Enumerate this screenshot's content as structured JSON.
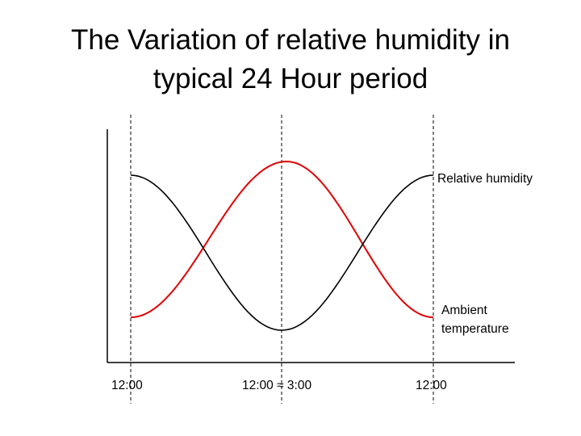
{
  "title": {
    "line1": "The Variation of relative humidity in",
    "line2": "typical 24 Hour period"
  },
  "chart_data": {
    "type": "line",
    "x_tick_labels": [
      "12:00",
      "12:00 ≈ 3:00",
      "12:00"
    ],
    "series": [
      {
        "name": "Relative humidity",
        "color": "#000000",
        "shape": "high at start and end, minimum at midday"
      },
      {
        "name": "Ambient temperature",
        "color": "#e00000",
        "shape": "low at start and end, maximum at midday"
      }
    ],
    "series_labels": {
      "humidity": "Relative humidity",
      "temperature_line1": "Ambient",
      "temperature_line2": "temperature"
    },
    "grid": "dashed vertical lines at tick positions",
    "y_axis_ticks": "none"
  }
}
